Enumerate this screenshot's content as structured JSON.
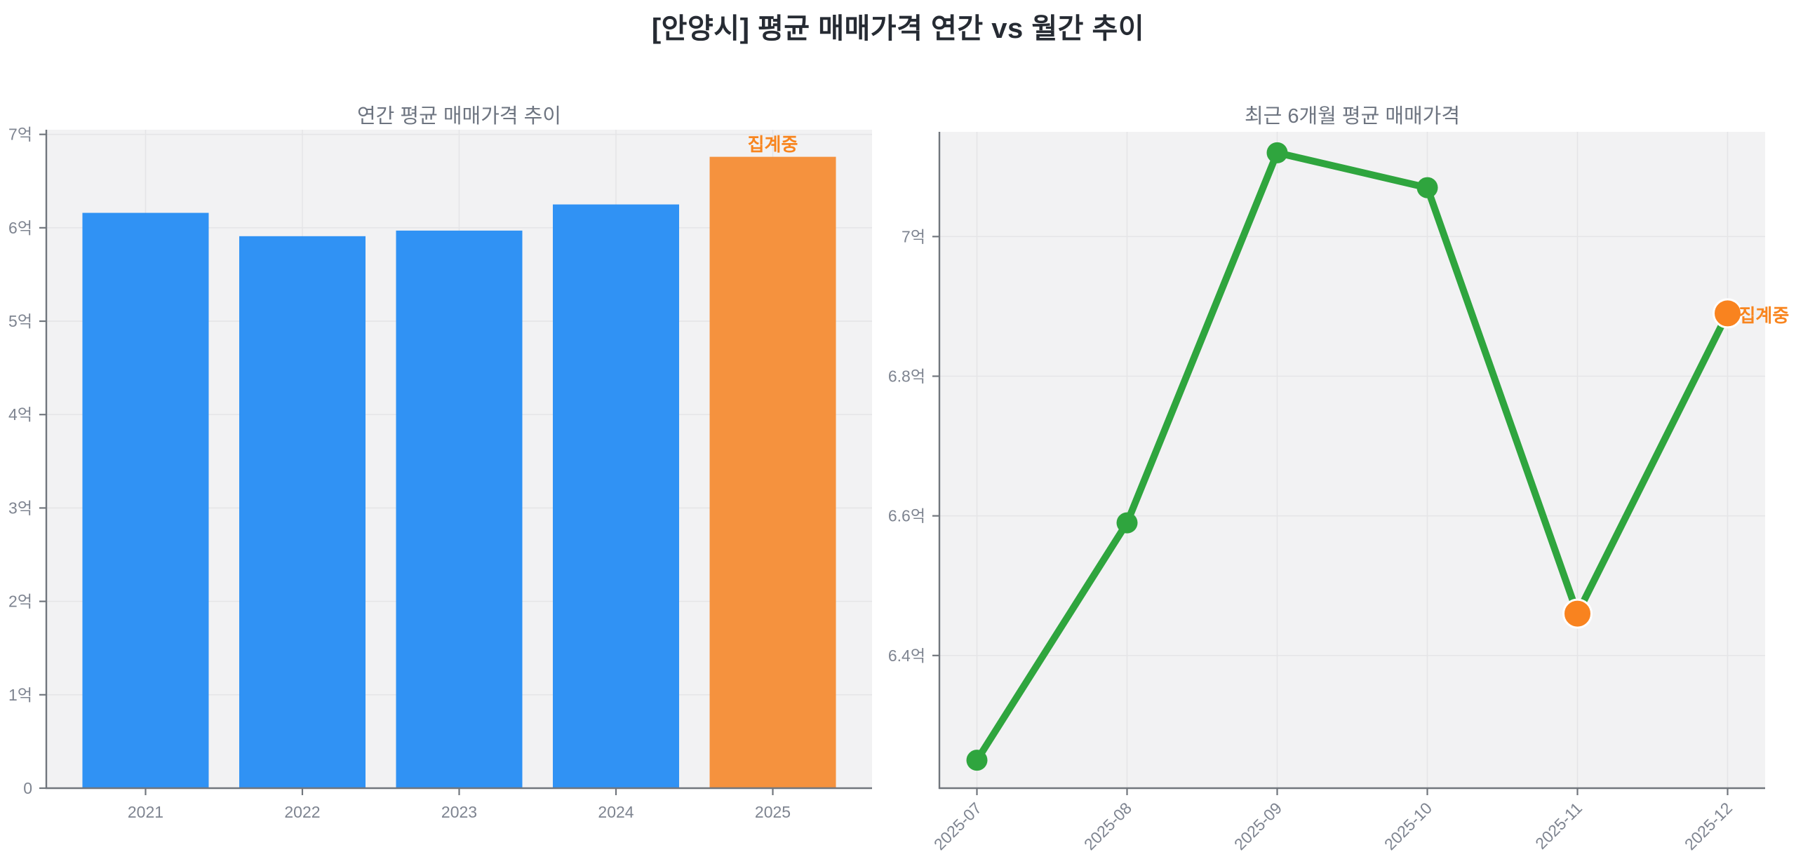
{
  "main_title": "[안양시] 평균 매매가격 연간 vs 월간 추이",
  "colors": {
    "bar_blue": "#3092f4",
    "bar_orange": "#f5923e",
    "line_green": "#2fa53e",
    "marker_green": "#2fa53e",
    "marker_orange": "#f9831f",
    "annotation_orange": "#f8851f",
    "title_dark": "#262b33",
    "subtitle_gray": "#6d7480",
    "tick_gray": "#7e8490",
    "plot_bg": "#f2f2f3",
    "grid": "#e5e5e7",
    "spine": "#71767d",
    "marker_edge_white": "#ffffff"
  },
  "chart_data": [
    {
      "type": "bar",
      "title": "연간 평균 매매가격 추이",
      "categories": [
        "2021",
        "2022",
        "2023",
        "2024",
        "2025"
      ],
      "values": [
        6.16,
        5.91,
        5.97,
        6.25,
        6.76
      ],
      "xlabel": "",
      "ylabel": "",
      "ylim": [
        0,
        7.05
      ],
      "yticks": [
        0,
        1,
        2,
        3,
        4,
        5,
        6,
        7
      ],
      "ytick_labels": [
        "0",
        "1억",
        "2억",
        "3억",
        "4억",
        "5억",
        "6억",
        "7억"
      ],
      "grid": true,
      "legend": "none",
      "highlight_index": 4,
      "annotation": {
        "text": "집계중",
        "target": "2025"
      }
    },
    {
      "type": "line",
      "title": "최근 6개월 평균 매매가격",
      "x": [
        "2025-07",
        "2025-08",
        "2025-09",
        "2025-10",
        "2025-11",
        "2025-12"
      ],
      "values": [
        6.25,
        6.59,
        7.12,
        7.07,
        6.46,
        6.89
      ],
      "xlabel": "",
      "ylabel": "",
      "ylim": [
        6.21,
        7.15
      ],
      "yticks": [
        6.4,
        6.6,
        6.8,
        7.0
      ],
      "ytick_labels": [
        "6.4억",
        "6.6억",
        "6.8억",
        "7억"
      ],
      "grid": true,
      "legend": "none",
      "xtick_rotation": 45,
      "highlight_indices": [
        4,
        5
      ],
      "annotation": {
        "text": "집계중",
        "target": "2025-12"
      }
    }
  ]
}
